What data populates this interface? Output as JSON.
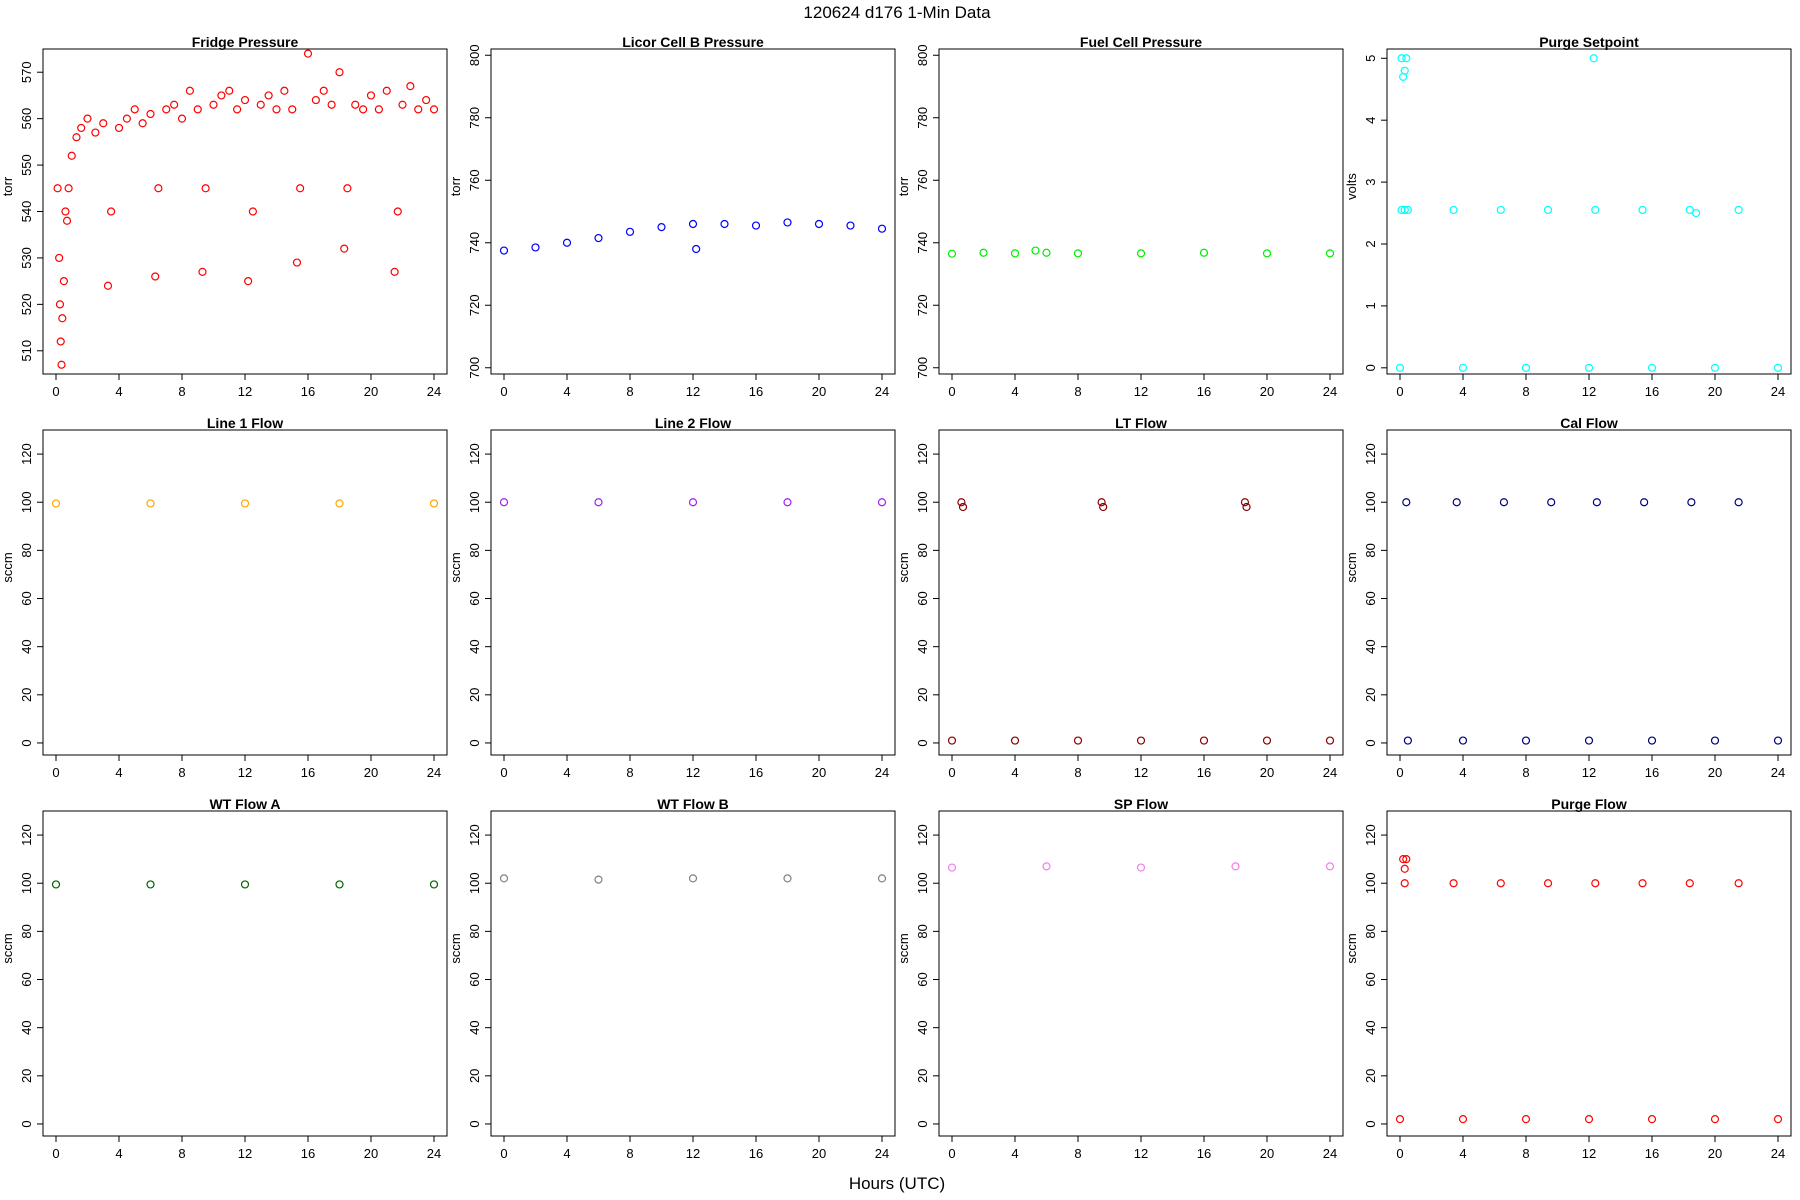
{
  "suptitle": "120624    d176    1-Min Data",
  "xlabel": "Hours (UTC)",
  "chart_data": [
    {
      "type": "scatter",
      "title": "Fridge Pressure",
      "ylabel": "torr",
      "color": "#ff0000",
      "xlim": [
        0,
        24
      ],
      "xticks": [
        0,
        4,
        8,
        12,
        16,
        20,
        24
      ],
      "ylim": [
        505,
        575
      ],
      "yticks": [
        510,
        520,
        530,
        540,
        550,
        560,
        570
      ],
      "points": [
        [
          0.1,
          545
        ],
        [
          0.2,
          530
        ],
        [
          0.25,
          520
        ],
        [
          0.3,
          512
        ],
        [
          0.35,
          507
        ],
        [
          0.4,
          517
        ],
        [
          0.5,
          525
        ],
        [
          0.6,
          540
        ],
        [
          0.7,
          538
        ],
        [
          0.8,
          545
        ],
        [
          1.0,
          552
        ],
        [
          1.3,
          556
        ],
        [
          1.6,
          558
        ],
        [
          2.0,
          560
        ],
        [
          2.5,
          557
        ],
        [
          3.0,
          559
        ],
        [
          3.3,
          524
        ],
        [
          3.5,
          540
        ],
        [
          4.0,
          558
        ],
        [
          4.5,
          560
        ],
        [
          5.0,
          562
        ],
        [
          5.5,
          559
        ],
        [
          6.0,
          561
        ],
        [
          6.3,
          526
        ],
        [
          6.5,
          545
        ],
        [
          7.0,
          562
        ],
        [
          7.5,
          563
        ],
        [
          8.0,
          560
        ],
        [
          8.5,
          566
        ],
        [
          9.0,
          562
        ],
        [
          9.3,
          527
        ],
        [
          9.5,
          545
        ],
        [
          10.0,
          563
        ],
        [
          10.5,
          565
        ],
        [
          11.0,
          566
        ],
        [
          11.5,
          562
        ],
        [
          12.0,
          564
        ],
        [
          12.2,
          525
        ],
        [
          12.5,
          540
        ],
        [
          13.0,
          563
        ],
        [
          13.5,
          565
        ],
        [
          14.0,
          562
        ],
        [
          14.5,
          566
        ],
        [
          15.0,
          562
        ],
        [
          15.3,
          529
        ],
        [
          15.5,
          545
        ],
        [
          16.0,
          574
        ],
        [
          16.5,
          564
        ],
        [
          17.0,
          566
        ],
        [
          17.5,
          563
        ],
        [
          18.0,
          570
        ],
        [
          18.3,
          532
        ],
        [
          18.5,
          545
        ],
        [
          19.0,
          563
        ],
        [
          19.5,
          562
        ],
        [
          20.0,
          565
        ],
        [
          20.5,
          562
        ],
        [
          21.0,
          566
        ],
        [
          21.5,
          527
        ],
        [
          21.7,
          540
        ],
        [
          22.0,
          563
        ],
        [
          22.5,
          567
        ],
        [
          23.0,
          562
        ],
        [
          23.5,
          564
        ],
        [
          24.0,
          562
        ]
      ]
    },
    {
      "type": "scatter",
      "title": "Licor Cell B Pressure",
      "ylabel": "torr",
      "color": "#0000ff",
      "xlim": [
        0,
        24
      ],
      "xticks": [
        0,
        4,
        8,
        12,
        16,
        20,
        24
      ],
      "ylim": [
        698,
        802
      ],
      "yticks": [
        700,
        720,
        740,
        760,
        780,
        800
      ],
      "points": [
        [
          0,
          737.5
        ],
        [
          2,
          738.5
        ],
        [
          4,
          740
        ],
        [
          6,
          741.5
        ],
        [
          8,
          743.5
        ],
        [
          10,
          745
        ],
        [
          12,
          746
        ],
        [
          14,
          746
        ],
        [
          16,
          745.5
        ],
        [
          18,
          746.5
        ],
        [
          20,
          746
        ],
        [
          22,
          745.5
        ],
        [
          24,
          744.5
        ],
        [
          12.2,
          738
        ]
      ]
    },
    {
      "type": "scatter",
      "title": "Fuel Cell Pressure",
      "ylabel": "torr",
      "color": "#00ee00",
      "xlim": [
        0,
        24
      ],
      "xticks": [
        0,
        4,
        8,
        12,
        16,
        20,
        24
      ],
      "ylim": [
        698,
        802
      ],
      "yticks": [
        700,
        720,
        740,
        760,
        780,
        800
      ],
      "points": [
        [
          0,
          736.5
        ],
        [
          2,
          736.8
        ],
        [
          4,
          736.6
        ],
        [
          5.3,
          737.5
        ],
        [
          6,
          736.8
        ],
        [
          8,
          736.6
        ],
        [
          12,
          736.6
        ],
        [
          16,
          736.8
        ],
        [
          20,
          736.6
        ],
        [
          24,
          736.6
        ]
      ]
    },
    {
      "type": "scatter",
      "title": "Purge Setpoint",
      "ylabel": "volts",
      "color": "#00ffff",
      "xlim": [
        0,
        24
      ],
      "xticks": [
        0,
        4,
        8,
        12,
        16,
        20,
        24
      ],
      "ylim": [
        -0.1,
        5.15
      ],
      "yticks": [
        0,
        1,
        2,
        3,
        4,
        5
      ],
      "points": [
        [
          0.1,
          5
        ],
        [
          0.2,
          4.7
        ],
        [
          0.3,
          4.8
        ],
        [
          0.4,
          5
        ],
        [
          0.1,
          2.55
        ],
        [
          0.3,
          2.55
        ],
        [
          0.5,
          2.55
        ],
        [
          3.4,
          2.55
        ],
        [
          6.4,
          2.55
        ],
        [
          9.4,
          2.55
        ],
        [
          12.3,
          5
        ],
        [
          12.4,
          2.55
        ],
        [
          15.4,
          2.55
        ],
        [
          18.4,
          2.55
        ],
        [
          18.8,
          2.5
        ],
        [
          21.5,
          2.55
        ],
        [
          0,
          0
        ],
        [
          4,
          0
        ],
        [
          8,
          0
        ],
        [
          12,
          0
        ],
        [
          16,
          0
        ],
        [
          20,
          0
        ],
        [
          24,
          0
        ]
      ]
    },
    {
      "type": "scatter",
      "title": "Line 1 Flow",
      "ylabel": "sccm",
      "color": "#ffa500",
      "xlim": [
        0,
        24
      ],
      "xticks": [
        0,
        4,
        8,
        12,
        16,
        20,
        24
      ],
      "ylim": [
        -5,
        130
      ],
      "yticks": [
        0,
        20,
        40,
        60,
        80,
        100,
        120
      ],
      "points": [
        [
          0,
          99.5
        ],
        [
          6,
          99.5
        ],
        [
          12,
          99.5
        ],
        [
          18,
          99.5
        ],
        [
          24,
          99.5
        ]
      ]
    },
    {
      "type": "scatter",
      "title": "Line 2 Flow",
      "ylabel": "sccm",
      "color": "#a020f0",
      "xlim": [
        0,
        24
      ],
      "xticks": [
        0,
        4,
        8,
        12,
        16,
        20,
        24
      ],
      "ylim": [
        -5,
        130
      ],
      "yticks": [
        0,
        20,
        40,
        60,
        80,
        100,
        120
      ],
      "points": [
        [
          0,
          100
        ],
        [
          6,
          100
        ],
        [
          12,
          100
        ],
        [
          18,
          100
        ],
        [
          24,
          100
        ]
      ]
    },
    {
      "type": "scatter",
      "title": "LT Flow",
      "ylabel": "sccm",
      "color": "#8b0000",
      "xlim": [
        0,
        24
      ],
      "xticks": [
        0,
        4,
        8,
        12,
        16,
        20,
        24
      ],
      "ylim": [
        -5,
        130
      ],
      "yticks": [
        0,
        20,
        40,
        60,
        80,
        100,
        120
      ],
      "points": [
        [
          0.6,
          100
        ],
        [
          0.7,
          98
        ],
        [
          9.5,
          100
        ],
        [
          9.6,
          98
        ],
        [
          18.6,
          100
        ],
        [
          18.7,
          98
        ],
        [
          0,
          1
        ],
        [
          4,
          1
        ],
        [
          8,
          1
        ],
        [
          12,
          1
        ],
        [
          16,
          1
        ],
        [
          20,
          1
        ],
        [
          24,
          1
        ]
      ]
    },
    {
      "type": "scatter",
      "title": "Cal Flow",
      "ylabel": "sccm",
      "color": "#000080",
      "xlim": [
        0,
        24
      ],
      "xticks": [
        0,
        4,
        8,
        12,
        16,
        20,
        24
      ],
      "ylim": [
        -5,
        130
      ],
      "yticks": [
        0,
        20,
        40,
        60,
        80,
        100,
        120
      ],
      "points": [
        [
          0.4,
          100
        ],
        [
          3.6,
          100
        ],
        [
          6.6,
          100
        ],
        [
          9.6,
          100
        ],
        [
          12.5,
          100
        ],
        [
          15.5,
          100
        ],
        [
          18.5,
          100
        ],
        [
          21.5,
          100
        ],
        [
          0.5,
          1
        ],
        [
          4,
          1
        ],
        [
          8,
          1
        ],
        [
          12,
          1
        ],
        [
          16,
          1
        ],
        [
          20,
          1
        ],
        [
          24,
          1
        ]
      ]
    },
    {
      "type": "scatter",
      "title": "WT Flow A",
      "ylabel": "sccm",
      "color": "#006400",
      "xlim": [
        0,
        24
      ],
      "xticks": [
        0,
        4,
        8,
        12,
        16,
        20,
        24
      ],
      "ylim": [
        -5,
        130
      ],
      "yticks": [
        0,
        20,
        40,
        60,
        80,
        100,
        120
      ],
      "points": [
        [
          0,
          99.5
        ],
        [
          6,
          99.5
        ],
        [
          12,
          99.5
        ],
        [
          18,
          99.5
        ],
        [
          24,
          99.5
        ]
      ]
    },
    {
      "type": "scatter",
      "title": "WT Flow B",
      "ylabel": "sccm",
      "color": "#808080",
      "xlim": [
        0,
        24
      ],
      "xticks": [
        0,
        4,
        8,
        12,
        16,
        20,
        24
      ],
      "ylim": [
        -5,
        130
      ],
      "yticks": [
        0,
        20,
        40,
        60,
        80,
        100,
        120
      ],
      "points": [
        [
          0,
          102
        ],
        [
          6,
          101.5
        ],
        [
          12,
          102
        ],
        [
          18,
          102
        ],
        [
          24,
          102
        ]
      ]
    },
    {
      "type": "scatter",
      "title": "SP Flow",
      "ylabel": "sccm",
      "color": "#ee82ee",
      "xlim": [
        0,
        24
      ],
      "xticks": [
        0,
        4,
        8,
        12,
        16,
        20,
        24
      ],
      "ylim": [
        -5,
        130
      ],
      "yticks": [
        0,
        20,
        40,
        60,
        80,
        100,
        120
      ],
      "points": [
        [
          0,
          106.5
        ],
        [
          6,
          107
        ],
        [
          12,
          106.5
        ],
        [
          18,
          107
        ],
        [
          24,
          107
        ]
      ]
    },
    {
      "type": "scatter",
      "title": "Purge Flow",
      "ylabel": "sccm",
      "color": "#ff0000",
      "xlim": [
        0,
        24
      ],
      "xticks": [
        0,
        4,
        8,
        12,
        16,
        20,
        24
      ],
      "ylim": [
        -5,
        130
      ],
      "yticks": [
        0,
        20,
        40,
        60,
        80,
        100,
        120
      ],
      "points": [
        [
          0.2,
          110
        ],
        [
          0.4,
          110
        ],
        [
          0.3,
          106
        ],
        [
          0.3,
          100
        ],
        [
          3.4,
          100
        ],
        [
          6.4,
          100
        ],
        [
          9.4,
          100
        ],
        [
          12.4,
          100
        ],
        [
          15.4,
          100
        ],
        [
          18.4,
          100
        ],
        [
          21.5,
          100
        ],
        [
          0,
          2
        ],
        [
          4,
          2
        ],
        [
          8,
          2
        ],
        [
          12,
          2
        ],
        [
          16,
          2
        ],
        [
          20,
          2
        ],
        [
          24,
          2
        ]
      ]
    }
  ]
}
